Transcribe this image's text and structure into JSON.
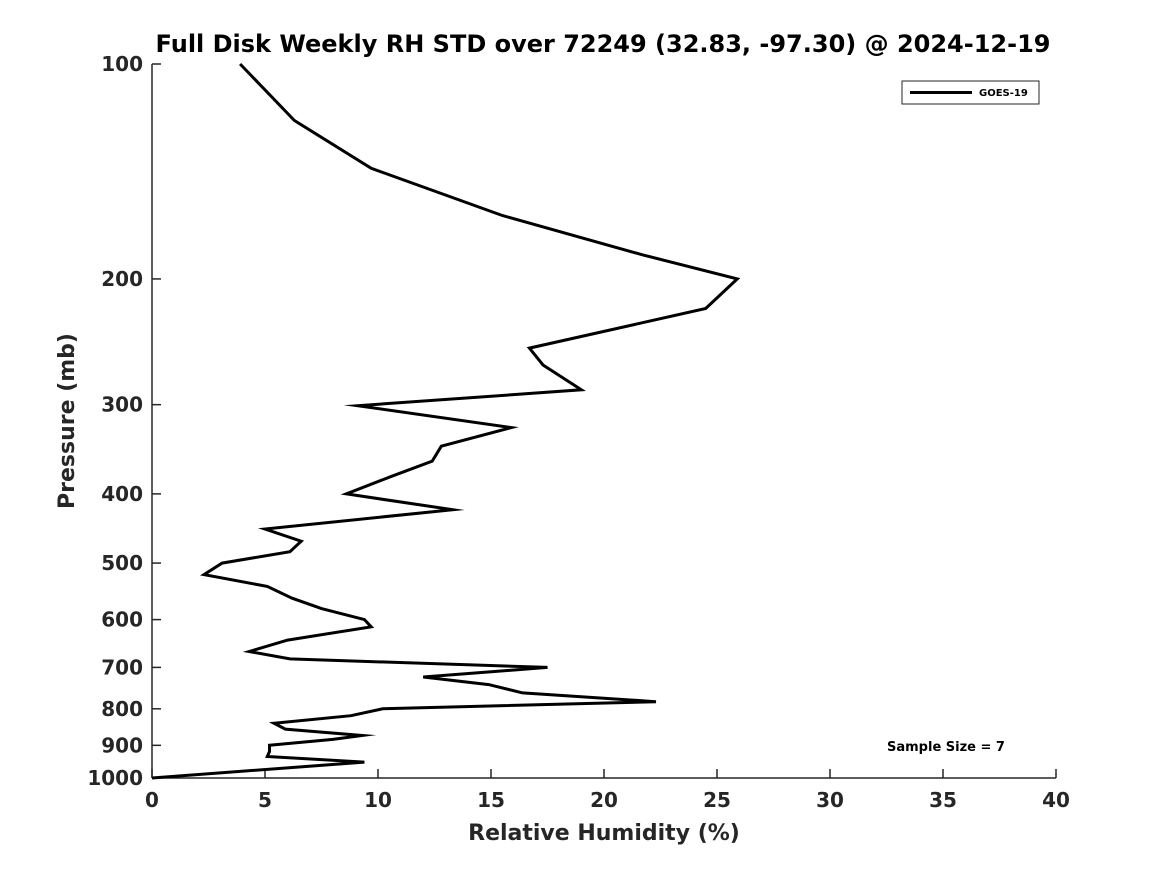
{
  "chart_data": {
    "type": "line",
    "title": "Full Disk Weekly RH STD over 72249 (32.83, -97.30) @ 2024-12-19",
    "xlabel": "Relative Humidity (%)",
    "ylabel": "Pressure (mb)",
    "xlim": [
      0,
      40
    ],
    "ylim": [
      100,
      1000
    ],
    "y_scale": "log",
    "y_reversed": true,
    "x_ticks": [
      "0",
      "5",
      "10",
      "15",
      "20",
      "25",
      "30",
      "35",
      "40"
    ],
    "x_tick_values": [
      0,
      5,
      10,
      15,
      20,
      25,
      30,
      35,
      40
    ],
    "y_ticks": [
      "100",
      "200",
      "300",
      "400",
      "500",
      "600",
      "700",
      "800",
      "900",
      "1000"
    ],
    "y_tick_values": [
      100,
      200,
      300,
      400,
      500,
      600,
      700,
      800,
      900,
      1000
    ],
    "grid": false,
    "legend_position": "top-right",
    "series": [
      {
        "name": "GOES-19",
        "color": "#000000",
        "points": [
          [
            3.9,
            100
          ],
          [
            6.3,
            120
          ],
          [
            9.7,
            140
          ],
          [
            15.5,
            163
          ],
          [
            21.7,
            185
          ],
          [
            25.9,
            200
          ],
          [
            24.5,
            220
          ],
          [
            16.7,
            250
          ],
          [
            17.3,
            264
          ],
          [
            19.0,
            286
          ],
          [
            9.1,
            301
          ],
          [
            15.9,
            323
          ],
          [
            12.8,
            343
          ],
          [
            12.4,
            360
          ],
          [
            10.6,
            378
          ],
          [
            8.6,
            400
          ],
          [
            13.3,
            421
          ],
          [
            5.0,
            448
          ],
          [
            6.6,
            466
          ],
          [
            6.1,
            482
          ],
          [
            3.1,
            500
          ],
          [
            2.3,
            519
          ],
          [
            5.1,
            539
          ],
          [
            6.2,
            560
          ],
          [
            7.5,
            579
          ],
          [
            9.4,
            600
          ],
          [
            9.7,
            614
          ],
          [
            6.0,
            641
          ],
          [
            4.3,
            665
          ],
          [
            6.1,
            681
          ],
          [
            17.5,
            700
          ],
          [
            12.0,
            722
          ],
          [
            14.9,
            740
          ],
          [
            16.4,
            760
          ],
          [
            22.3,
            782
          ],
          [
            10.2,
            800
          ],
          [
            8.8,
            818
          ],
          [
            5.4,
            838
          ],
          [
            5.9,
            854
          ],
          [
            9.3,
            872
          ],
          [
            8.0,
            883
          ],
          [
            5.2,
            900
          ],
          [
            5.2,
            918
          ],
          [
            5.1,
            933
          ],
          [
            9.4,
            950
          ],
          [
            0.0,
            1000
          ]
        ]
      }
    ],
    "annotations": [
      {
        "text": "Sample Size = 7"
      }
    ]
  }
}
